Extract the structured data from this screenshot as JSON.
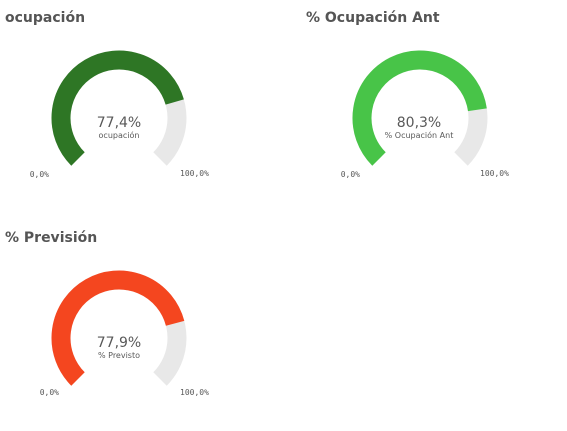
{
  "gauges": [
    {
      "title": "ocupación",
      "value": 77.4,
      "value_text": "77,4%",
      "label": "ocupación",
      "min_label": "0,0%",
      "max_label": "100,0%",
      "min": 0,
      "max": 100,
      "color": "#2e7625",
      "track_color": "#e8e8e8"
    },
    {
      "title": "% Ocupación Ant",
      "value": 80.3,
      "value_text": "80,3%",
      "label": "% Ocupación Ant",
      "min_label": "0,0%",
      "max_label": "100,0%",
      "min": 0,
      "max": 100,
      "color": "#48c448",
      "track_color": "#e8e8e8"
    },
    {
      "title": "% Previsión",
      "value": 77.9,
      "value_text": "77,9%",
      "label": "% Previsto",
      "min_label": "0,0%",
      "max_label": "100,0%",
      "min": 0,
      "max": 100,
      "color": "#f4461f",
      "track_color": "#e8e8e8"
    }
  ]
}
